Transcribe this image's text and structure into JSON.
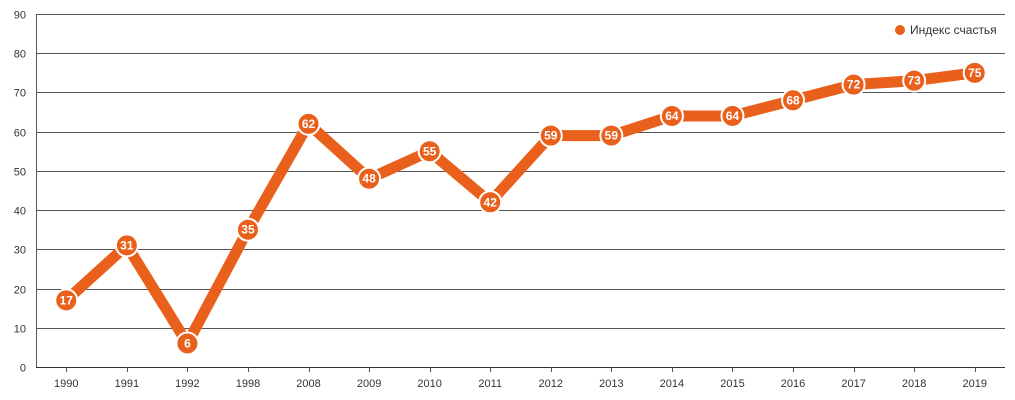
{
  "chart_data": {
    "type": "line",
    "title": "",
    "xlabel": "",
    "ylabel": "",
    "categories": [
      "1990",
      "1991",
      "1992",
      "1998",
      "2008",
      "2009",
      "2010",
      "2011",
      "2012",
      "2013",
      "2014",
      "2015",
      "2016",
      "2017",
      "2018",
      "2019"
    ],
    "series": [
      {
        "name": "Индекс счастья",
        "values": [
          17,
          31,
          6,
          35,
          62,
          48,
          55,
          42,
          59,
          59,
          64,
          64,
          68,
          72,
          73,
          75
        ],
        "color": "#e8601c"
      }
    ],
    "ylim": [
      0,
      90
    ],
    "yticks": [
      "0",
      "10",
      "20",
      "30",
      "40",
      "50",
      "60",
      "70",
      "80",
      "90"
    ],
    "grid": true,
    "legend_position": "top-right",
    "data_labels": true
  }
}
